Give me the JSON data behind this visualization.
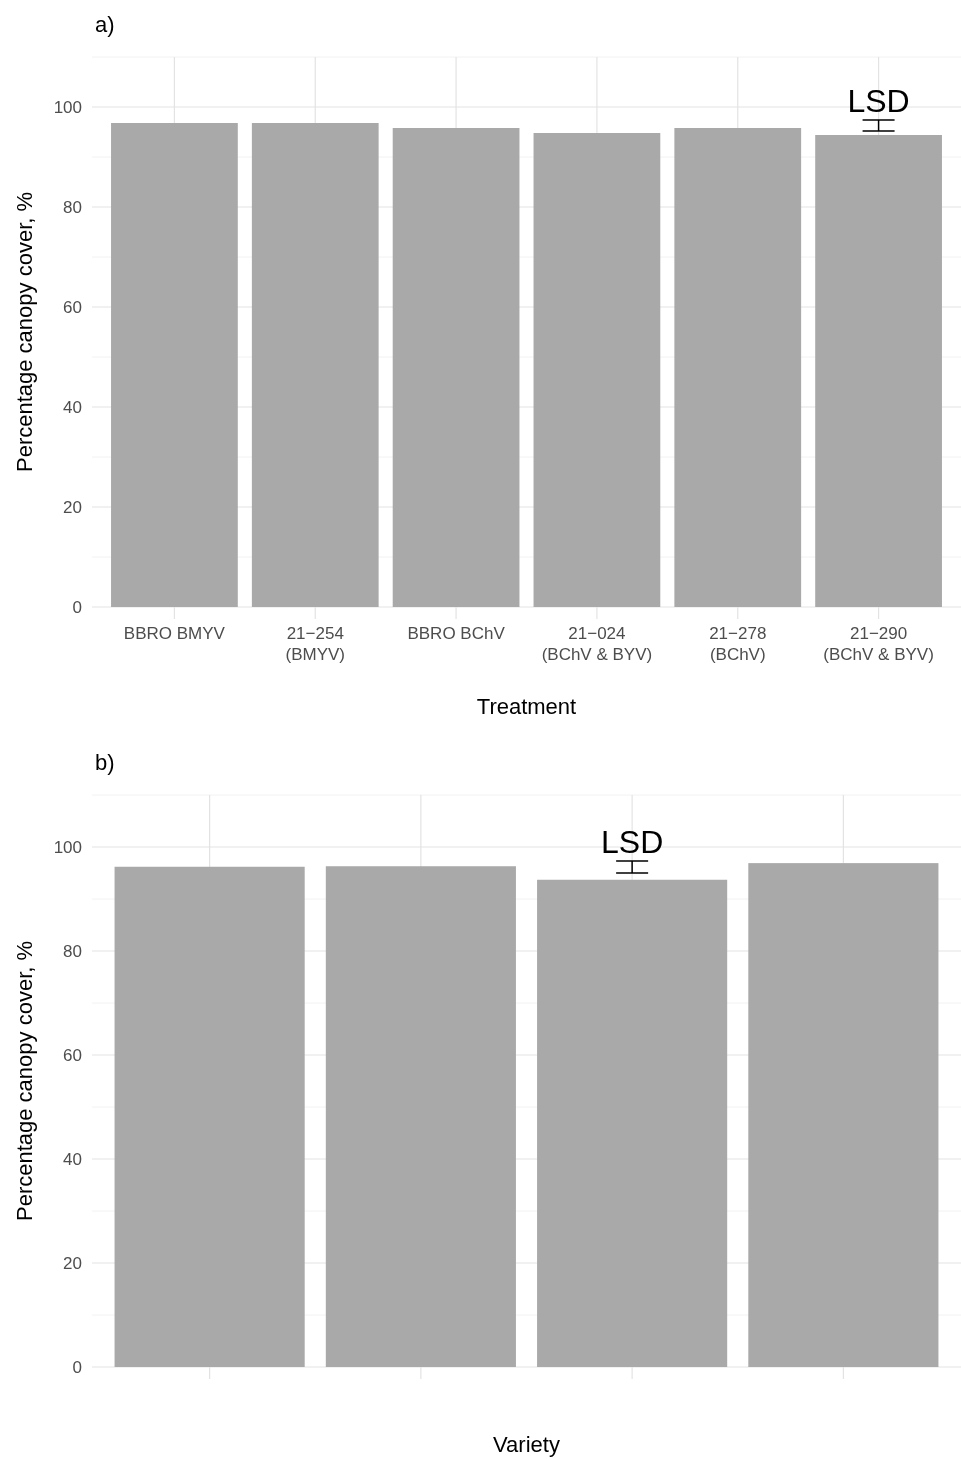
{
  "chart_data": [
    {
      "type": "bar",
      "title": "a)",
      "xlabel": "Treatment",
      "ylabel": "Percentage canopy cover, %",
      "categories": [
        "BBRO BMYV",
        "21−254\n(BMYV)",
        "BBRO BChV",
        "21−024\n(BChV & BYV)",
        "21−278\n(BChV)",
        "21−290\n(BChV & BYV)"
      ],
      "values": [
        96.8,
        96.8,
        95.8,
        94.8,
        95.8,
        94.4
      ],
      "errors": [
        null,
        null,
        null,
        null,
        null,
        [
          95.2,
          97.4
        ]
      ],
      "annotations": [
        "LSD"
      ],
      "color": "#a9a9a9",
      "ylim": [
        0,
        110
      ],
      "yticks": [
        0,
        20,
        40,
        60,
        80,
        100
      ],
      "grid": true
    },
    {
      "type": "bar",
      "title": "b)",
      "xlabel": "Variety",
      "ylabel": "Percentage canopy cover, %",
      "categories": [
        null,
        null,
        null,
        null
      ],
      "values": [
        96.2,
        96.3,
        93.7,
        96.9
      ],
      "errors": [
        null,
        null,
        [
          95.0,
          97.3
        ],
        null
      ],
      "annotations": [
        "LSD"
      ],
      "color": "#a9a9a9",
      "ylim": [
        0,
        110
      ],
      "yticks": [
        0,
        20,
        40,
        60,
        80,
        100
      ],
      "grid": true
    }
  ]
}
